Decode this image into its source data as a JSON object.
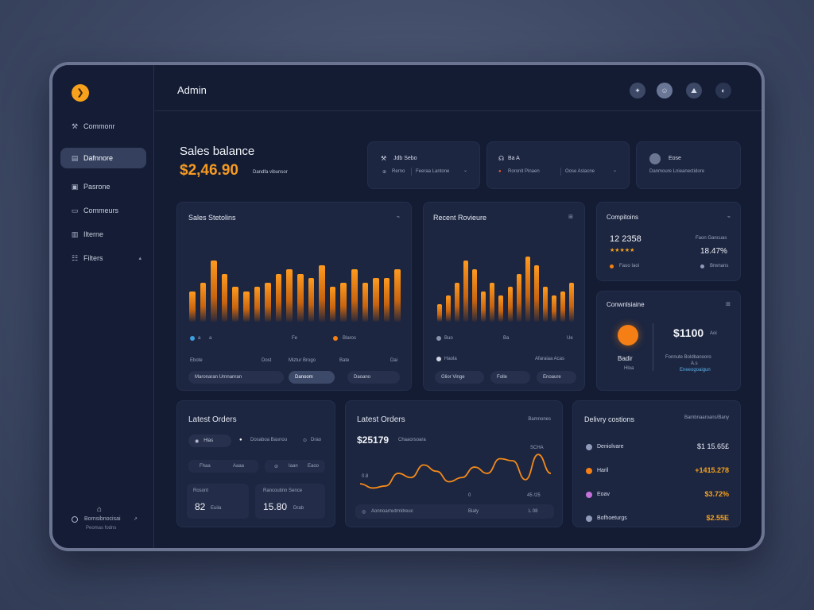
{
  "app": {
    "title": "Admin",
    "logo_glyph": "❯"
  },
  "sidebar": {
    "items": [
      {
        "label": "Commonr",
        "icon": "⚒",
        "icon_name": "tools-icon"
      },
      {
        "label": "Dafnnore",
        "icon": "▤",
        "icon_name": "dashboard-icon",
        "active": true
      },
      {
        "label": "Pasrone",
        "icon": "▣",
        "icon_name": "profile-icon"
      },
      {
        "label": "Commeurs",
        "icon": "▭",
        "icon_name": "comments-icon"
      },
      {
        "label": "Ilterne",
        "icon": "▥",
        "icon_name": "items-icon"
      },
      {
        "label": "Filters",
        "icon": "☷",
        "icon_name": "filters-icon",
        "caret": "▴"
      }
    ],
    "footer": {
      "icon": "⌂",
      "name": "Bornsibnocisai",
      "sub": "Peomas fodns",
      "caret": "↗"
    }
  },
  "topbar": {
    "icons": [
      "✦",
      "☺",
      "⛰",
      "◐"
    ]
  },
  "balance": {
    "title": "Sales balance",
    "value": "$2,46.90",
    "sub": "Dandfa vibunsor"
  },
  "summary_cards": [
    {
      "head_icon": "⚒",
      "head": "Jdb  Sebo",
      "line_icon": "⊕",
      "line1": "Rerno",
      "line2": "Feeraa  Lantone",
      "caret": "⌄"
    },
    {
      "head_icon": "☊",
      "head": "Ba  A",
      "line_icon": "●",
      "line1": "Roronit Pinaen",
      "line2": "Oose  Aslacne",
      "caret": "⌄"
    },
    {
      "head": "Eose",
      "line2": "Danmoure  Lnieanectidore"
    }
  ],
  "sales_statistics": {
    "title": "Sales Stetolins",
    "corner": "⌁",
    "legend": [
      "☉",
      "a",
      "a",
      "Fe",
      "Blaros"
    ],
    "row2": [
      "Ebote",
      "Dost",
      "Miztur  Brogo",
      "Bate",
      "Dai"
    ],
    "buttons": [
      "Maronaran Urnnanran",
      "Danoom",
      "Daoano"
    ]
  },
  "recent_reviews": {
    "title": "Recent Rovieure",
    "corner": "⊞",
    "legend": [
      "Buo",
      "Ba",
      "Ue"
    ],
    "row2": [
      "Haola",
      "Afaraiaa  Acas"
    ],
    "buttons": [
      "Glior Vinge",
      "Folle",
      "Enoaure"
    ]
  },
  "complaints": {
    "title": "Compitoins",
    "corner": "⌁",
    "value": "12 2358",
    "stars": "★★★★★",
    "right_label": "Faon Gancuas",
    "percent": "18.47%",
    "foot_left": "Fauo Iaoi",
    "foot_right": "Brwnans"
  },
  "conversions": {
    "title": "Conwnlsiaine",
    "corner": "⊞",
    "left_label": "Badir",
    "left_sub": "Hloa",
    "value": "$1100",
    "value_unit": "Aoi",
    "line1": "Fonnute  Boldbanooro",
    "line2": "A.s",
    "line3": "Eneeogoaigun"
  },
  "latest_orders_1": {
    "title": "Latest Orders",
    "pill_left": "Hlas",
    "pill_mid": "Dosaboa Basnou",
    "pill_right": "Drao",
    "row": [
      "Fhaa",
      "Aaaa",
      "Iaan",
      "Eaoo"
    ],
    "box1_label": "Rosont",
    "box1_value": "82",
    "box1_unit": "Euiia",
    "box2_label": "Rancoutinn  Sence",
    "box2_value": "15.80",
    "box2_unit": "Drab"
  },
  "latest_orders_2": {
    "title": "Latest Orders",
    "corner": "Bamnones",
    "value": "$25179",
    "value_sub": "Chaaorsoara",
    "label_left": "0.8",
    "label_right_top": "SCHA",
    "label_mid": "0",
    "label_right": "45  /25",
    "foot_left": "Aonnoarnutrmitreuc",
    "foot_mid": "Bialy",
    "foot_right": "L 08"
  },
  "delivery": {
    "title": "Delivry costions",
    "corner": "Bambnaaroans/Bany",
    "rows": [
      {
        "label": "Deniolvare",
        "value": "$1 15.65£",
        "color": "#8f9bb9",
        "orange": false
      },
      {
        "label": "Haril",
        "value": "+1415.278",
        "color": "#f57f14",
        "orange": true
      },
      {
        "label": "Eoav",
        "value": "$3.72%",
        "color": "#c471d9",
        "orange": true
      },
      {
        "label": "Bofhoeturgs",
        "value": "$2.55E",
        "color": "#8f9bb9",
        "orange": true
      }
    ]
  },
  "chart_data": [
    {
      "type": "bar",
      "title": "Sales Stetolins",
      "values": [
        35,
        45,
        70,
        55,
        40,
        35,
        40,
        45,
        55,
        60,
        55,
        50,
        65,
        40,
        45,
        60,
        45,
        50,
        50,
        60
      ],
      "ylim": [
        0,
        100
      ]
    },
    {
      "type": "bar",
      "title": "Recent Rovieure",
      "values": [
        20,
        30,
        45,
        70,
        60,
        35,
        45,
        30,
        40,
        55,
        75,
        65,
        40,
        30,
        35,
        45
      ],
      "ylim": [
        0,
        100
      ]
    },
    {
      "type": "line",
      "title": "Latest Orders",
      "values": [
        12,
        8,
        10,
        22,
        18,
        30,
        24,
        14,
        18,
        28,
        22,
        36,
        34,
        16,
        40,
        22
      ],
      "ylim": [
        0,
        50
      ]
    }
  ]
}
